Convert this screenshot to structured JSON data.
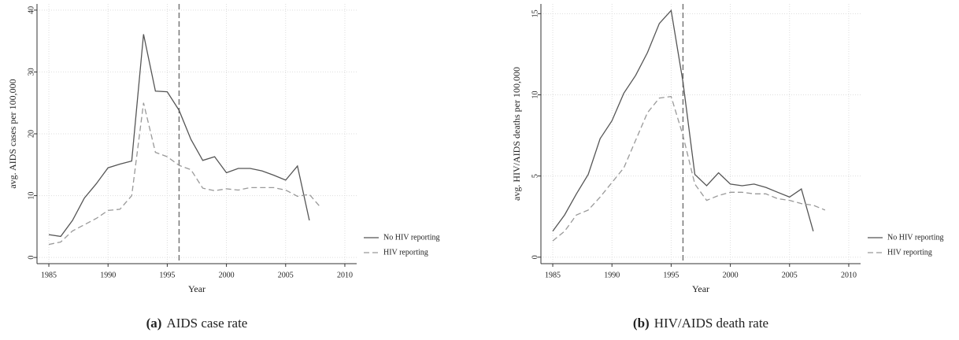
{
  "chart_data": [
    {
      "type": "line",
      "caption_label": "(a)",
      "caption": "AIDS case rate",
      "xlabel": "Year",
      "ylabel": "avg. AIDS cases per 100,000",
      "x": [
        1985,
        1986,
        1987,
        1988,
        1989,
        1990,
        1991,
        1992,
        1993,
        1994,
        1995,
        1996,
        1997,
        1998,
        1999,
        2000,
        2001,
        2002,
        2003,
        2004,
        2005,
        2006,
        2007,
        2008
      ],
      "series": [
        {
          "name": "No HIV reporting",
          "color": "#555555",
          "linestyle": "solid",
          "values": [
            3.7,
            3.4,
            6,
            9.6,
            11.9,
            14.5,
            15.1,
            15.6,
            36.1,
            26.9,
            26.8,
            23.8,
            19.1,
            15.7,
            16.3,
            13.7,
            14.4,
            14.4,
            14,
            13.3,
            12.5,
            14.8,
            6,
            null
          ]
        },
        {
          "name": "HIV reporting",
          "color": "#999999",
          "linestyle": "dashed",
          "values": [
            2.1,
            2.5,
            4.3,
            5.3,
            6.3,
            7.6,
            7.8,
            10,
            25,
            17,
            16.3,
            14.9,
            14.2,
            11.2,
            10.8,
            11.1,
            10.9,
            11.3,
            11.3,
            11.3,
            10.9,
            9.9,
            10.2,
            8
          ]
        }
      ],
      "vline": 1996,
      "xlim": [
        1984,
        2011
      ],
      "ylim": [
        -1,
        41
      ],
      "xticks": [
        1985,
        1990,
        1995,
        2000,
        2005,
        2010
      ],
      "yticks": [
        0,
        10,
        20,
        30,
        40
      ],
      "grid": true,
      "legend": "lower right"
    },
    {
      "type": "line",
      "caption_label": "(b)",
      "caption": "HIV/AIDS death rate",
      "xlabel": "Year",
      "ylabel": "avg. HIV/AIDS deaths per 100,000",
      "x": [
        1985,
        1986,
        1987,
        1988,
        1989,
        1990,
        1991,
        1992,
        1993,
        1994,
        1995,
        1996,
        1997,
        1998,
        1999,
        2000,
        2001,
        2002,
        2003,
        2004,
        2005,
        2006,
        2007,
        2008
      ],
      "series": [
        {
          "name": "No HIV reporting",
          "color": "#555555",
          "linestyle": "solid",
          "values": [
            1.6,
            2.6,
            3.9,
            5.1,
            7.3,
            8.4,
            10.1,
            11.2,
            12.6,
            14.4,
            15.2,
            10.8,
            5.1,
            4.4,
            5.2,
            4.5,
            4.4,
            4.5,
            4.3,
            4,
            3.7,
            4.2,
            1.6,
            null
          ]
        },
        {
          "name": "HIV reporting",
          "color": "#999999",
          "linestyle": "dashed",
          "values": [
            1,
            1.6,
            2.6,
            2.9,
            3.7,
            4.6,
            5.5,
            7.2,
            8.9,
            9.8,
            9.9,
            7.5,
            4.5,
            3.5,
            3.8,
            4,
            4,
            3.9,
            3.9,
            3.6,
            3.5,
            3.3,
            3.2,
            2.9
          ]
        }
      ],
      "vline": 1996,
      "xlim": [
        1984,
        2011
      ],
      "ylim": [
        -0.4,
        15.6
      ],
      "xticks": [
        1985,
        1990,
        1995,
        2000,
        2005,
        2010
      ],
      "yticks": [
        0,
        5,
        10,
        15
      ],
      "grid": true,
      "legend": "lower right"
    }
  ]
}
